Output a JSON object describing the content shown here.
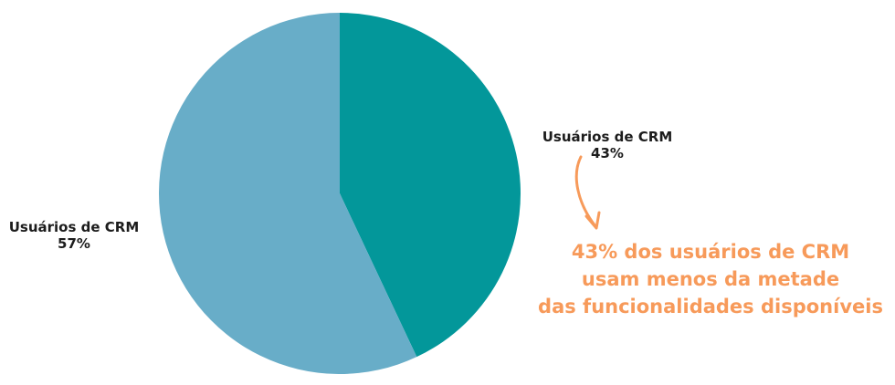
{
  "chart_data": {
    "type": "pie",
    "slices": [
      {
        "label": "Usuários de CRM",
        "value": 43,
        "value_label": "43%",
        "color": "#03979a"
      },
      {
        "label": "Usuários de CRM",
        "value": 57,
        "value_label": "57%",
        "color": "#68adc8"
      }
    ],
    "annotation": {
      "lines": [
        "43% dos usuários de CRM",
        "usam menos da metade",
        "das funcionalidades disponíveis"
      ],
      "color": "#f79a5a"
    }
  }
}
